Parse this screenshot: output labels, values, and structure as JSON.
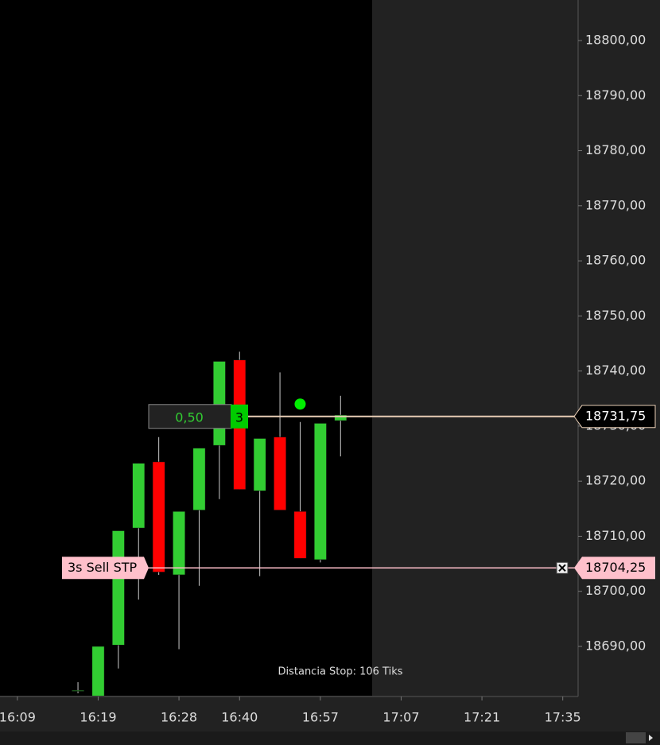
{
  "chart_data": {
    "type": "candlestick",
    "x": [
      0,
      1,
      2,
      3,
      4,
      5,
      6,
      7,
      8,
      9,
      10,
      11,
      12,
      13
    ],
    "open": [
      18682,
      18681,
      18690.25,
      18711.5,
      18723.5,
      18703,
      18714.75,
      18726.5,
      18742,
      18718.25,
      18728,
      18714.5,
      18705.75,
      18731
    ],
    "high": [
      18683.5,
      18690,
      18711,
      18723.25,
      18728,
      18714.5,
      18726,
      18741.75,
      18743.5,
      18727.75,
      18739.75,
      18730.75,
      18730.5,
      18735.5
    ],
    "low": [
      18681.5,
      18681,
      18686,
      18698.5,
      18703,
      18689.5,
      18701,
      18716.75,
      18718.5,
      18702.75,
      18714.75,
      18706,
      18705.25,
      18724.5
    ],
    "close": [
      18682,
      18690,
      18711,
      18723.25,
      18703.5,
      18714.5,
      18726,
      18741.75,
      18718.5,
      18727.75,
      18714.75,
      18706,
      18730.5,
      18732
    ],
    "up_color": "#32cd32",
    "down_color": "#ff0000",
    "signal": {
      "x": 11,
      "value": 18734,
      "color": "#00ee00"
    },
    "xlim": [
      -3.86,
      24.76
    ],
    "xticks": [
      {
        "value": -3,
        "label": "16:09"
      },
      {
        "value": 1,
        "label": "16:19"
      },
      {
        "value": 5,
        "label": "16:28"
      },
      {
        "value": 8,
        "label": "16:40"
      },
      {
        "value": 12,
        "label": "16:57"
      },
      {
        "value": 16,
        "label": "17:07"
      },
      {
        "value": 20,
        "label": "17:21"
      },
      {
        "value": 24,
        "label": "17:35"
      }
    ],
    "ylim": [
      18681.05,
      18807.36
    ],
    "yticks": [
      {
        "value": 18800,
        "label": "18800,00"
      },
      {
        "value": 18790,
        "label": "18790,00"
      },
      {
        "value": 18780,
        "label": "18780,00"
      },
      {
        "value": 18770,
        "label": "18770,00"
      },
      {
        "value": 18760,
        "label": "18760,00"
      },
      {
        "value": 18750,
        "label": "18750,00"
      },
      {
        "value": 18740,
        "label": "18740,00"
      },
      {
        "value": 18730,
        "label": "18730,00"
      },
      {
        "value": 18720,
        "label": "18720,00"
      },
      {
        "value": 18710,
        "label": "18710,00"
      },
      {
        "value": 18700,
        "label": "18700,00"
      },
      {
        "value": 18690,
        "label": "18690,00"
      }
    ],
    "last_price": {
      "value": 18731.75,
      "label": "18731,75",
      "pnl": "0,50",
      "quantity": "3"
    },
    "stop_order": {
      "value": 18704.25,
      "label": "18704,25",
      "text": "3s Sell STP"
    },
    "annotation": "Distancia Stop: 106 Tiks"
  }
}
